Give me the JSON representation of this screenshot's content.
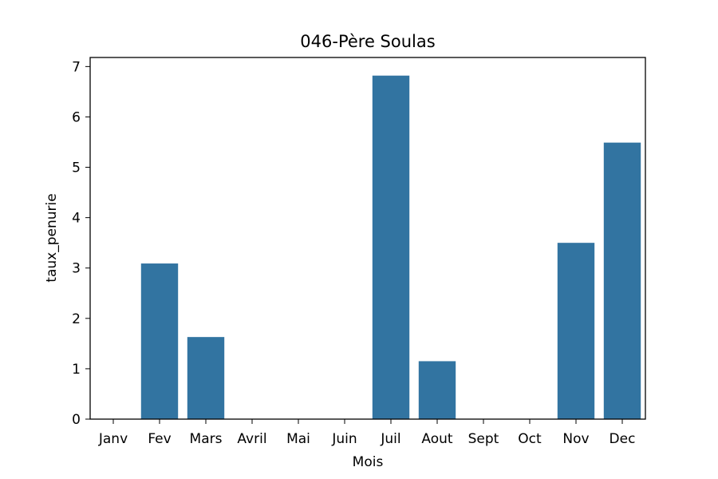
{
  "chart_data": {
    "type": "bar",
    "title": "046-Père Soulas",
    "xlabel": "Mois",
    "ylabel": "taux_penurie",
    "categories": [
      "Janv",
      "Fev",
      "Mars",
      "Avril",
      "Mai",
      "Juin",
      "Juil",
      "Aout",
      "Sept",
      "Oct",
      "Nov",
      "Dec"
    ],
    "values": [
      0,
      3.09,
      1.63,
      0,
      0,
      0,
      6.82,
      1.15,
      0,
      0,
      3.5,
      5.49
    ],
    "ylim": [
      0,
      7.18
    ],
    "yticks": [
      0,
      1,
      2,
      3,
      4,
      5,
      6,
      7
    ],
    "grid": false,
    "bar_color": "#3274a1"
  }
}
